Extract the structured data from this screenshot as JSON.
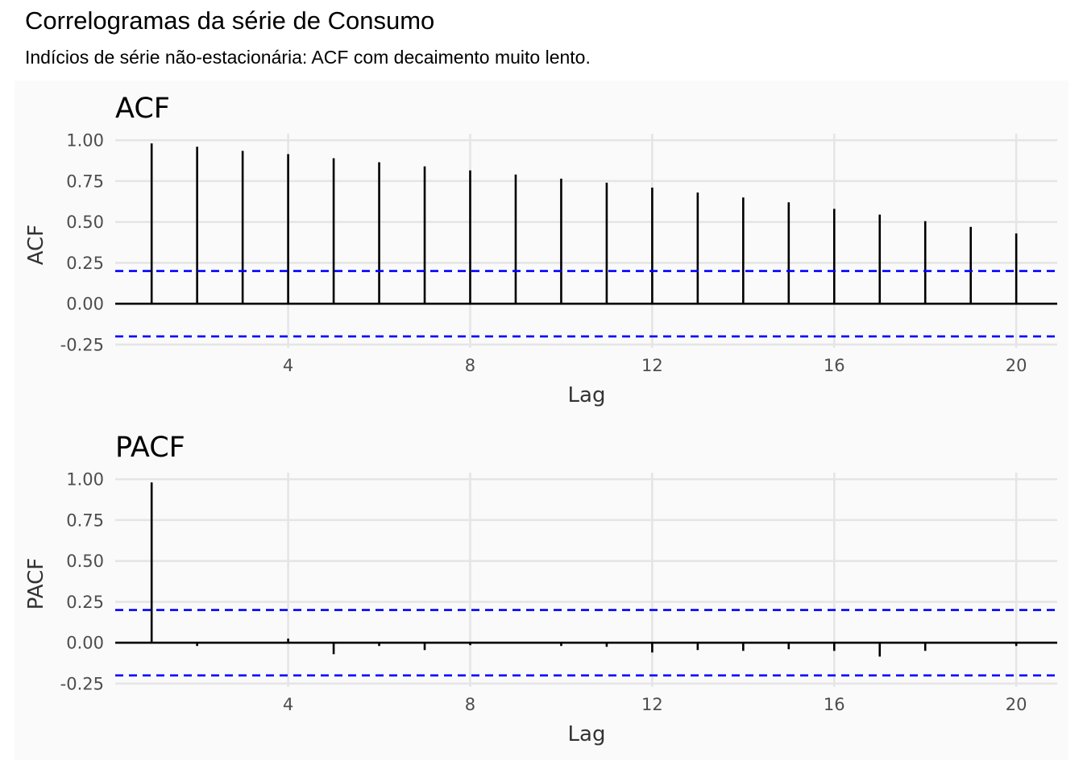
{
  "title": "Correlogramas da série de Consumo",
  "subtitle": "Indícios de série não-estacionária: ACF com decaimento muito lento.",
  "colors": {
    "bar": "#000000",
    "ci_line": "#0000ff",
    "grid": "#e5e5e5",
    "panel_bg": "#fafafa"
  },
  "chart_data": [
    {
      "type": "bar",
      "title": "ACF",
      "xlabel": "Lag",
      "ylabel": "ACF",
      "x": [
        1,
        2,
        3,
        4,
        5,
        6,
        7,
        8,
        9,
        10,
        11,
        12,
        13,
        14,
        15,
        16,
        17,
        18,
        19,
        20
      ],
      "values": [
        0.98,
        0.96,
        0.935,
        0.915,
        0.89,
        0.865,
        0.84,
        0.815,
        0.79,
        0.765,
        0.74,
        0.71,
        0.68,
        0.65,
        0.62,
        0.58,
        0.545,
        0.505,
        0.47,
        0.43
      ],
      "ci": 0.2,
      "xlim": [
        0.2,
        20.9
      ],
      "ylim": [
        -0.27,
        1.04
      ],
      "xticks": [
        4,
        8,
        12,
        16,
        20
      ],
      "xtick_labels": [
        "4",
        "8",
        "12",
        "16",
        "20"
      ],
      "yticks": [
        -0.25,
        0,
        0.25,
        0.5,
        0.75,
        1
      ],
      "ytick_labels": [
        "-0.25",
        "0.00",
        "0.25",
        "0.50",
        "0.75",
        "1.00"
      ],
      "grid": true
    },
    {
      "type": "bar",
      "title": "PACF",
      "xlabel": "Lag",
      "ylabel": "PACF",
      "x": [
        1,
        2,
        3,
        4,
        5,
        6,
        7,
        8,
        9,
        10,
        11,
        12,
        13,
        14,
        15,
        16,
        17,
        18,
        19,
        20
      ],
      "values": [
        0.98,
        -0.02,
        0.0,
        0.025,
        -0.07,
        -0.02,
        -0.045,
        -0.015,
        -0.005,
        -0.02,
        -0.025,
        -0.06,
        -0.045,
        -0.05,
        -0.04,
        -0.05,
        -0.085,
        -0.05,
        -0.005,
        -0.02
      ],
      "ci": 0.2,
      "xlim": [
        0.2,
        20.9
      ],
      "ylim": [
        -0.27,
        1.04
      ],
      "xticks": [
        4,
        8,
        12,
        16,
        20
      ],
      "xtick_labels": [
        "4",
        "8",
        "12",
        "16",
        "20"
      ],
      "yticks": [
        -0.25,
        0,
        0.25,
        0.5,
        0.75,
        1
      ],
      "ytick_labels": [
        "-0.25",
        "0.00",
        "0.25",
        "0.50",
        "0.75",
        "1.00"
      ],
      "grid": true
    }
  ]
}
